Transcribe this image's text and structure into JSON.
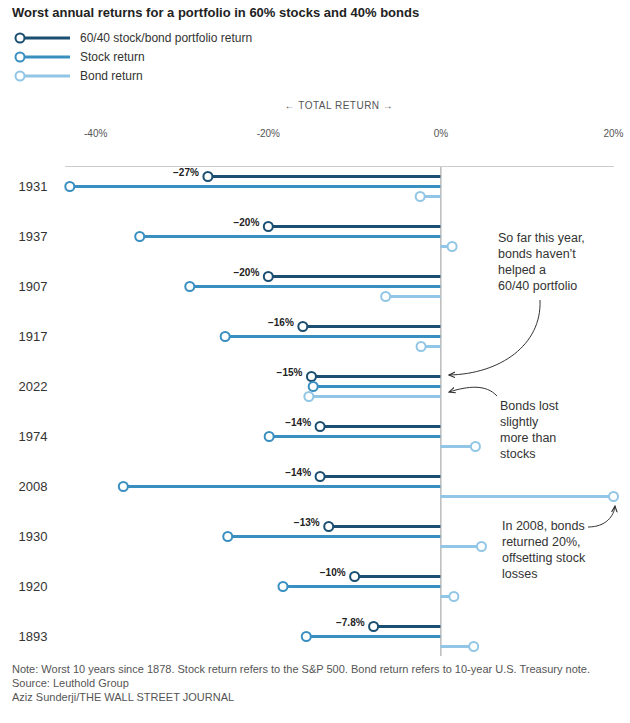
{
  "chart_data": {
    "type": "lollipop",
    "title": "Worst annual returns for a portfolio in 60% stocks and 40% bonds",
    "orientation": "horizontal",
    "legend": "top-left",
    "data_labels": true,
    "x_label": "←   TOTAL RETURN   →",
    "xlim": [
      -43.5,
      20
    ],
    "xticks": [
      {
        "value": -40,
        "label": "-40%"
      },
      {
        "value": -20,
        "label": "-20%"
      },
      {
        "value": 0,
        "label": "0%"
      },
      {
        "value": 20,
        "label": "20%"
      }
    ],
    "categories": [
      "1931",
      "1937",
      "1907",
      "1917",
      "2022",
      "1974",
      "2008",
      "1930",
      "1920",
      "1893"
    ],
    "series": [
      {
        "name": "60/40 stock/bond portfolio return",
        "color": "#1b4f72",
        "values": [
          -27,
          -20,
          -20,
          -16,
          -15,
          -14,
          -14,
          -13,
          -10,
          -7.8
        ],
        "value_labels": [
          "−27%",
          "−20%",
          "−20%",
          "−16%",
          "−15%",
          "−14%",
          "−14%",
          "−13%",
          "−10%",
          "−7.8%"
        ]
      },
      {
        "name": "Stock return",
        "color": "#3a8fc1",
        "values": [
          -43,
          -34.9,
          -29.1,
          -25,
          -14.8,
          -19.9,
          -36.8,
          -24.7,
          -18.3,
          -15.6
        ]
      },
      {
        "name": "Bond return",
        "color": "#92c6e6",
        "values": [
          -2.4,
          1.3,
          -6.4,
          -2.3,
          -15.3,
          4,
          20,
          4.7,
          1.5,
          3.8
        ]
      }
    ],
    "annotations": [
      [
        "So far this year,",
        "bonds haven’t",
        "helped a",
        "60/40 portfolio"
      ],
      [
        "Bonds lost",
        "slightly",
        "more than",
        "stocks"
      ],
      [
        "In 2008, bonds",
        "returned 20%,",
        "offsetting stock",
        "losses"
      ]
    ],
    "note": "Note: Worst 10 years since 1878. Stock return refers to the S&P 500. Bond return refers to 10-year U.S. Treasury note.",
    "source": "Source: Leuthold Group",
    "credit": "Aziz Sunderji/THE WALL STREET JOURNAL"
  }
}
